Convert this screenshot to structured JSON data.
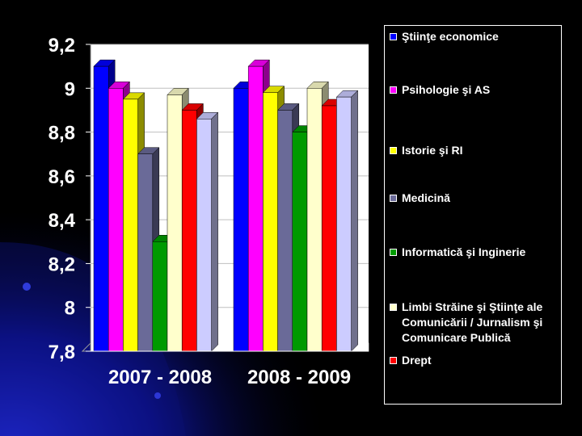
{
  "chart_data": {
    "type": "bar",
    "title": "",
    "xlabel": "",
    "ylabel": "",
    "categories": [
      "2007 - 2008",
      "2008 - 2009"
    ],
    "ylim": [
      7.8,
      9.2
    ],
    "yticks": [
      "9,2",
      "9",
      "8,8",
      "8,6",
      "8,4",
      "8,2",
      "8",
      "7,8"
    ],
    "ytick_values": [
      9.2,
      9.0,
      8.8,
      8.6,
      8.4,
      8.2,
      8.0,
      7.8
    ],
    "legend_position": "right",
    "series": [
      {
        "name": "Ştiinţe economice",
        "color": "#0000ff",
        "values": [
          9.1,
          9.0
        ]
      },
      {
        "name": "Psihologie şi AS",
        "color": "#ff00ff",
        "values": [
          9.0,
          9.1
        ]
      },
      {
        "name": "Istorie şi RI",
        "color": "#ffff00",
        "values": [
          8.95,
          8.98
        ]
      },
      {
        "name": "Medicină",
        "color": "#6a6a98",
        "values": [
          8.7,
          8.9
        ]
      },
      {
        "name": "Informatică şi Inginerie",
        "color": "#009a00",
        "values": [
          8.3,
          8.8
        ]
      },
      {
        "name": "Limbi Străine şi Ştiinţe ale Comunicării / Jurnalism şi Comunicare Publică",
        "color": "#ffffcc",
        "values": [
          8.97,
          9.0
        ]
      },
      {
        "name": "Drept",
        "color": "#ff0000",
        "values": [
          8.9,
          8.92
        ]
      },
      {
        "name": "",
        "color": "#ccccff",
        "values": [
          8.86,
          8.96
        ]
      }
    ]
  }
}
